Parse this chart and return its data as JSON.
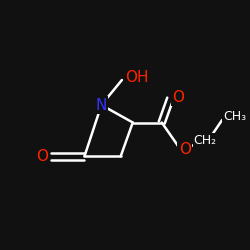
{
  "bg_color": "#111111",
  "atom_color_N": "#3333ff",
  "atom_color_O": "#ff2200",
  "atom_color_C": "#ffffff",
  "bond_color": "#ffffff",
  "bond_width": 1.8,
  "fig_width": 2.5,
  "fig_height": 2.5,
  "dpi": 100,
  "xlim": [
    0,
    10
  ],
  "ylim": [
    0,
    10
  ]
}
